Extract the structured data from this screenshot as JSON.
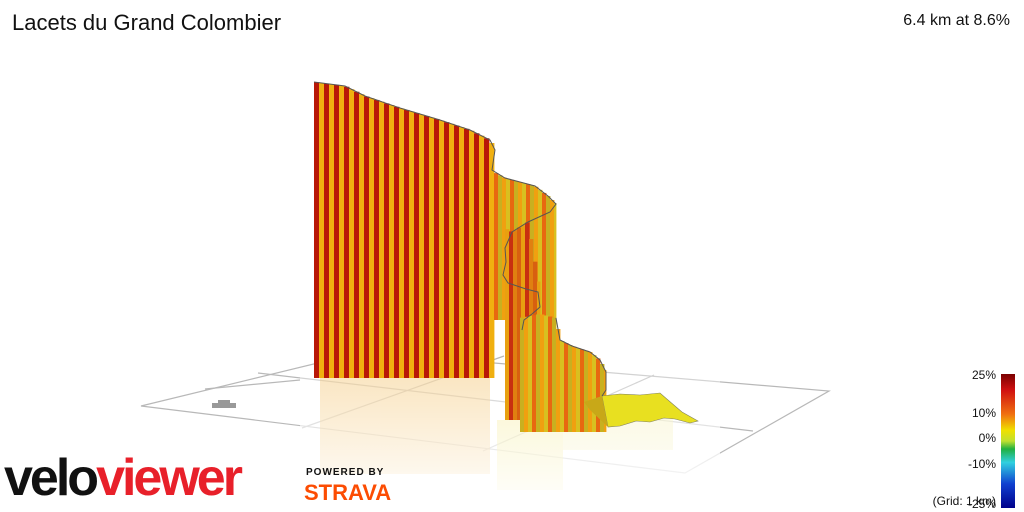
{
  "header": {
    "title": "Lacets du Grand Colombier",
    "summary": "6.4 km at 8.6%"
  },
  "branding": {
    "logo_part1": "velo",
    "logo_part2": "viewer",
    "powered_by": "POWERED BY",
    "strava": "STRAVA"
  },
  "legend": {
    "ticks": [
      "25%",
      "10%",
      "0%",
      "-10%",
      "-25%"
    ],
    "grid_note": "(Grid: 1 km)",
    "colors": {
      "top": "#8b0000",
      "red": "#e02010",
      "orange": "#f08010",
      "yellow": "#f0e000",
      "green": "#20b020",
      "cyan": "#30c0e0",
      "blue": "#1030c0",
      "bottom": "#000080"
    }
  },
  "chart_data": {
    "type": "3d-elevation-profile",
    "distance_km": 6.4,
    "average_gradient_pct": 8.6,
    "gradient_scale_range": [
      -25,
      25
    ],
    "grid_spacing_km": 1
  }
}
